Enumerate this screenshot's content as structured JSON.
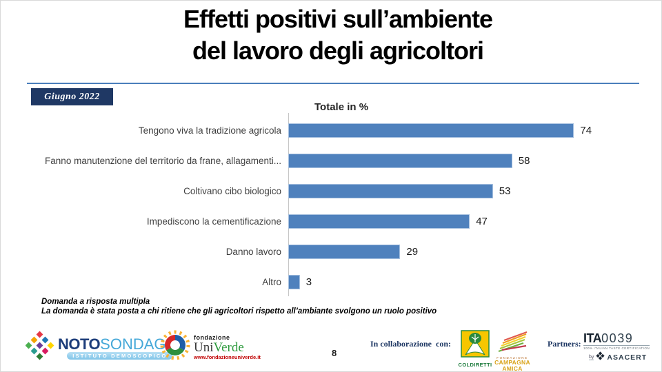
{
  "slide": {
    "title_line1": "Effetti positivi sull’ambiente",
    "title_line2": "del lavoro degli agricoltori",
    "date_badge": "Giugno 2022",
    "page_number": "8"
  },
  "chart_data": {
    "type": "bar",
    "orientation": "horizontal",
    "title": "Totale in %",
    "categories": [
      "Tengono viva la tradizione agricola",
      "Fanno manutenzione del territorio da frane, allagamenti...",
      "Coltivano cibo biologico",
      "Impediscono la cementificazione",
      "Danno lavoro",
      "Altro"
    ],
    "values": [
      74,
      58,
      53,
      47,
      29,
      3
    ],
    "xlim": [
      0,
      80
    ],
    "bar_color": "#4f81bd",
    "axis_color": "#c6c6c6",
    "grid": false,
    "legend": "none"
  },
  "notes": {
    "line1": "Domanda a risposta multipla",
    "line2": "La domanda è stata posta a chi ritiene che gli agricoltori rispetto all’ambiante svolgono un ruolo positivo"
  },
  "footer": {
    "collab_label": "In collaborazione  con:",
    "partners_label": "Partners:",
    "logos": {
      "noto": {
        "name1": "NOTO",
        "name2": "SONDAGGI",
        "subtitle": "ISTITUTO DEMOSCOPICO"
      },
      "univerde": {
        "small": "fondazione",
        "name1": "Uni",
        "name2": "Verde",
        "url": "www.fondazioneuniverde.it"
      },
      "coldiretti": {
        "label": "COLDIRETTI"
      },
      "campagna": {
        "line1": "FONDAZIONE",
        "line2": "CAMPAGNA",
        "line3": "AMICA"
      },
      "ita": {
        "name": "ITA",
        "number": "0039",
        "tagline": "100% ITALIAN TASTE CERTIFICATION",
        "by": "by",
        "asacert": "ASACERT"
      }
    }
  },
  "colors": {
    "accent_blue": "#4a7ebb",
    "badge_bg": "#1f3864",
    "navy_text": "#1f3864",
    "bar_blue": "#4f81bd"
  }
}
